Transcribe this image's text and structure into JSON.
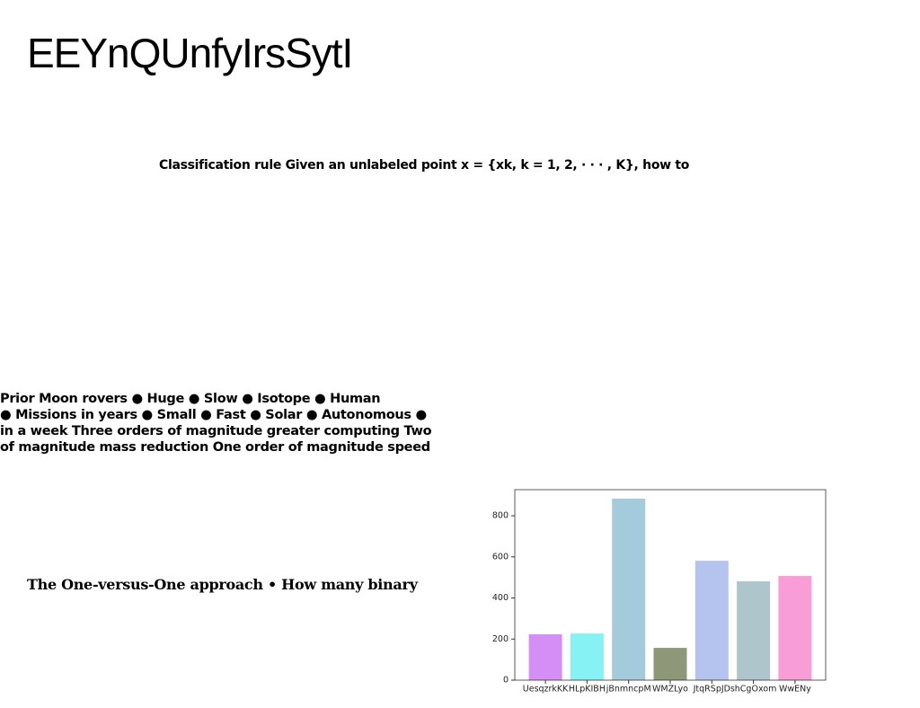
{
  "title": "EEYnQUnfyIrsSytI",
  "subtitle": "Classification rule Given an unlabeled point x = {xk, k = 1, 2, · · · , K}, how to",
  "paragraph": [
    "Prior Moon rovers ● Huge ● Slow ● Isotope ● Human",
    "● Missions in years ● Small ● Fast ● Solar ● Autonomous ●",
    "in a week Three orders of magnitude greater computing Two",
    "of magnitude mass reduction One order of magnitude speed"
  ],
  "caption": "The One-versus-One approach • How many binary",
  "chart_data": {
    "type": "bar",
    "categories": [
      "UesqzrkKK",
      "HLpKIBH",
      "jBnmncpM",
      "WMZLyo",
      "JtqRSpJD",
      "shCgOxom",
      "WwENy"
    ],
    "values": [
      223,
      227,
      883,
      157,
      581,
      481,
      507
    ],
    "colors": [
      "#d58ef5",
      "#86f2f4",
      "#a3cbdb",
      "#8e9778",
      "#b5c4ee",
      "#aec6cb",
      "#f99dd6"
    ],
    "ylim": [
      0,
      927
    ],
    "yticks": [
      0,
      200,
      400,
      600,
      800
    ],
    "grid": false
  }
}
